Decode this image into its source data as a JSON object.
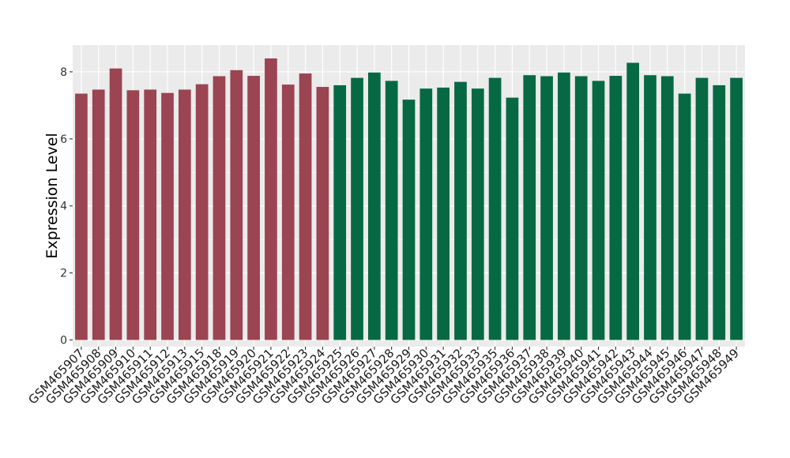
{
  "chart_data": {
    "type": "bar",
    "title": "",
    "xlabel": "",
    "ylabel": "Expression Level",
    "ylim": [
      -0.2,
      8.8
    ],
    "yticks": [
      0,
      2,
      4,
      6,
      8
    ],
    "grid": true,
    "panel_background": "#ebebeb",
    "categories": [
      "GSM465907",
      "GSM465908",
      "GSM465909",
      "GSM465910",
      "GSM465911",
      "GSM465912",
      "GSM465913",
      "GSM465915",
      "GSM465918",
      "GSM465919",
      "GSM465920",
      "GSM465921",
      "GSM465922",
      "GSM465923",
      "GSM465924",
      "GSM465925",
      "GSM465926",
      "GSM465927",
      "GSM465928",
      "GSM465929",
      "GSM465930",
      "GSM465931",
      "GSM465932",
      "GSM465933",
      "GSM465935",
      "GSM465936",
      "GSM465937",
      "GSM465938",
      "GSM465939",
      "GSM465940",
      "GSM465941",
      "GSM465942",
      "GSM465943",
      "GSM465944",
      "GSM465945",
      "GSM465946",
      "GSM465947",
      "GSM465948",
      "GSM465949"
    ],
    "values": [
      7.35,
      7.47,
      8.1,
      7.45,
      7.47,
      7.37,
      7.47,
      7.63,
      7.87,
      8.05,
      7.88,
      8.4,
      7.62,
      7.95,
      7.55,
      7.6,
      7.82,
      7.98,
      7.73,
      7.17,
      7.5,
      7.53,
      7.7,
      7.5,
      7.82,
      7.23,
      7.9,
      7.87,
      7.98,
      7.87,
      7.73,
      7.88,
      8.27,
      7.9,
      7.87,
      7.35,
      7.82,
      7.6,
      7.82
    ],
    "groups": [
      0,
      0,
      0,
      0,
      0,
      0,
      0,
      0,
      0,
      0,
      0,
      0,
      0,
      0,
      0,
      1,
      1,
      1,
      1,
      1,
      1,
      1,
      1,
      1,
      1,
      1,
      1,
      1,
      1,
      1,
      1,
      1,
      1,
      1,
      1,
      1,
      1,
      1,
      1
    ],
    "colors": [
      "#9b4452",
      "#066943"
    ]
  }
}
